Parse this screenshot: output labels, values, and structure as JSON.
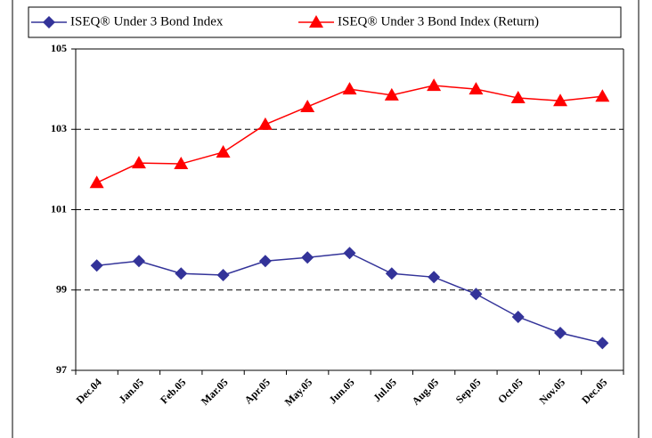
{
  "chart_data": {
    "type": "line",
    "categories": [
      "Dec.04",
      "Jan.05",
      "Feb.05",
      "Mar.05",
      "Apr.05",
      "May.05",
      "Jun.05",
      "Jul.05",
      "Aug.05",
      "Sep.05",
      "Oct.05",
      "Nov.05",
      "Dec.05"
    ],
    "series": [
      {
        "name": "ISEQ® Under 3 Bond Index",
        "color": "#333399",
        "marker": "diamond",
        "values": [
          99.61,
          99.72,
          99.41,
          99.37,
          99.72,
          99.81,
          99.92,
          99.41,
          99.32,
          98.9,
          98.33,
          97.93,
          97.68
        ]
      },
      {
        "name": "ISEQ® Under 3 Bond Index (Return)",
        "color": "#ff0000",
        "marker": "triangle",
        "values": [
          101.67,
          102.16,
          102.14,
          102.43,
          103.12,
          103.56,
          104.0,
          103.85,
          104.09,
          104.0,
          103.78,
          103.71,
          103.82
        ]
      }
    ],
    "ylim": [
      97,
      105
    ],
    "yticks": [
      97,
      99,
      101,
      103,
      105
    ],
    "grid": true,
    "legend": "top"
  }
}
